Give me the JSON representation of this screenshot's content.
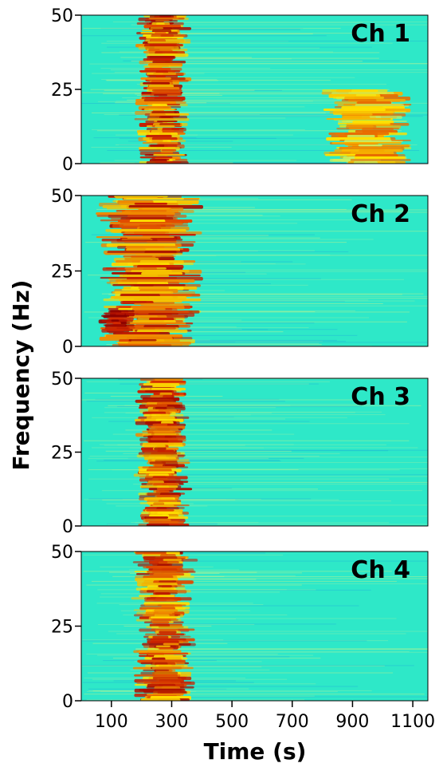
{
  "chart_data": {
    "type": "heatmap",
    "xlabel": "Time (s)",
    "ylabel": "Frequency (Hz)",
    "xlim": [
      0,
      1150
    ],
    "xticks": [
      100,
      300,
      500,
      700,
      900,
      1100
    ],
    "colormap": "jet",
    "background_color": "#2ee8c8",
    "panels": [
      {
        "name": "Ch 1",
        "ylim": [
          0,
          50
        ],
        "yticks": [
          0,
          25,
          50
        ],
        "activity": [
          {
            "t_start": 180,
            "t_end": 360,
            "f_start": 0,
            "f_end": 50,
            "intensity": "high"
          },
          {
            "t_start": 800,
            "t_end": 1100,
            "f_start": 0,
            "f_end": 25,
            "intensity": "medium"
          }
        ]
      },
      {
        "name": "Ch 2",
        "ylim": [
          0,
          50
        ],
        "yticks": [
          0,
          25,
          50
        ],
        "activity": [
          {
            "t_start": 60,
            "t_end": 400,
            "f_start": 0,
            "f_end": 50,
            "intensity": "high"
          },
          {
            "t_start": 60,
            "t_end": 180,
            "f_start": 5,
            "f_end": 12,
            "intensity": "very-high"
          }
        ]
      },
      {
        "name": "Ch 3",
        "ylim": [
          0,
          50
        ],
        "yticks": [
          0,
          25,
          50
        ],
        "activity": [
          {
            "t_start": 180,
            "t_end": 360,
            "f_start": 0,
            "f_end": 50,
            "intensity": "high"
          }
        ]
      },
      {
        "name": "Ch 4",
        "ylim": [
          0,
          50
        ],
        "yticks": [
          0,
          25,
          50
        ],
        "activity": [
          {
            "t_start": 170,
            "t_end": 380,
            "f_start": 0,
            "f_end": 50,
            "intensity": "high"
          }
        ]
      }
    ]
  }
}
